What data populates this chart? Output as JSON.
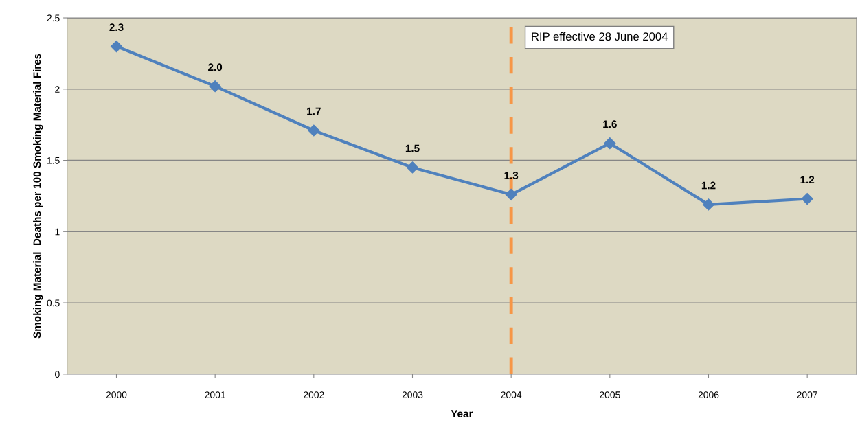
{
  "chart_data": {
    "type": "line",
    "xlabel": "Year",
    "ylabel": "Smoking Material  Deaths per 100 Smoking Material Fires",
    "categories": [
      "2000",
      "2001",
      "2002",
      "2003",
      "2004",
      "2005",
      "2006",
      "2007"
    ],
    "series": [
      {
        "color": "#4f81bd",
        "values": [
          2.3,
          2.02,
          1.71,
          1.45,
          1.26,
          1.62,
          1.19,
          1.23
        ],
        "value_labels": [
          "2.3",
          "2.0",
          "1.7",
          "1.5",
          "1.3",
          "1.6",
          "1.2",
          "1.2"
        ]
      }
    ],
    "ylim": [
      0,
      2.5
    ],
    "yticks": [
      0,
      0.5,
      1,
      1.5,
      2,
      2.5
    ],
    "grid": "y",
    "marker": "diamond",
    "line_style": "solid",
    "ref_lines": [
      {
        "axis": "x",
        "value": "2004",
        "label": "RIP effective 28 June 2004",
        "color": "#f79646",
        "line_style": "dashed"
      }
    ]
  }
}
